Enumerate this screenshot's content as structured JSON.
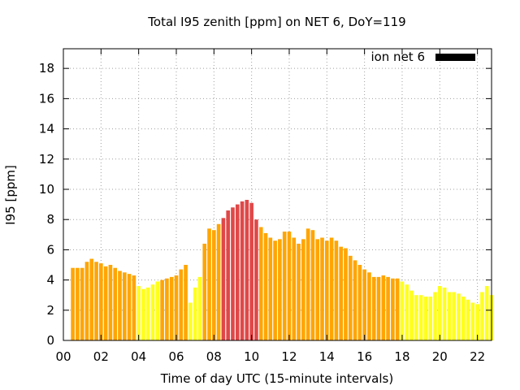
{
  "chart_data": {
    "type": "bar",
    "title": "Total I95 zenith [ppm] on NET 6, DoY=119",
    "xlabel": "Time of day UTC (15-minute intervals)",
    "ylabel": "I95 [ppm]",
    "xlim": [
      0,
      22.75
    ],
    "ylim": [
      0,
      19.3
    ],
    "x_ticks": [
      "00",
      "02",
      "04",
      "06",
      "08",
      "10",
      "12",
      "14",
      "16",
      "18",
      "20",
      "22"
    ],
    "y_ticks": [
      "0",
      "2",
      "4",
      "6",
      "8",
      "10",
      "12",
      "14",
      "16",
      "18"
    ],
    "grid": true,
    "legend": {
      "label": "ion net 6",
      "color": "#000000",
      "position": "top-right"
    },
    "colors": {
      "yellow": "#ffff1e",
      "orange": "#ffa500",
      "red": "#e04848"
    },
    "series": [
      {
        "values": [
          4.8,
          4.8,
          4.8,
          5.2,
          5.4,
          5.2,
          5.1,
          4.9,
          5.0,
          4.8,
          4.6,
          4.5,
          4.4,
          4.3,
          3.6,
          3.4,
          3.5,
          3.7,
          3.9,
          4.0,
          4.1,
          4.2,
          4.3,
          4.7,
          5.0,
          2.5,
          3.5,
          4.2,
          6.4,
          7.4,
          7.3,
          7.7,
          8.1,
          8.6,
          8.8,
          9.0,
          9.2,
          9.3,
          9.1,
          8.0,
          7.5,
          7.1,
          6.8,
          6.6,
          6.7,
          7.2,
          7.2,
          6.8,
          6.4,
          6.7,
          7.4,
          7.3,
          6.7,
          6.8,
          6.6,
          6.8,
          6.6,
          6.2,
          6.1,
          5.6,
          5.3,
          5.0,
          4.7,
          4.5,
          4.2,
          4.2,
          4.3,
          4.2,
          4.1,
          4.1,
          3.9,
          3.7,
          3.3,
          3.0,
          3.0,
          2.9,
          2.9,
          3.2,
          3.6,
          3.5,
          3.2,
          3.2,
          3.1,
          2.9,
          2.7,
          2.5,
          2.4,
          3.2,
          3.6,
          3.0
        ],
        "colors": [
          "orange",
          "orange",
          "orange",
          "orange",
          "orange",
          "orange",
          "orange",
          "orange",
          "orange",
          "orange",
          "orange",
          "orange",
          "orange",
          "orange",
          "yellow",
          "yellow",
          "yellow",
          "yellow",
          "yellow",
          "orange",
          "orange",
          "orange",
          "orange",
          "orange",
          "orange",
          "yellow",
          "yellow",
          "yellow",
          "orange",
          "orange",
          "orange",
          "orange",
          "red",
          "red",
          "red",
          "red",
          "red",
          "red",
          "red",
          "red",
          "orange",
          "orange",
          "orange",
          "orange",
          "orange",
          "orange",
          "orange",
          "orange",
          "orange",
          "orange",
          "orange",
          "orange",
          "orange",
          "orange",
          "orange",
          "orange",
          "orange",
          "orange",
          "orange",
          "orange",
          "orange",
          "orange",
          "orange",
          "orange",
          "orange",
          "orange",
          "orange",
          "orange",
          "orange",
          "orange",
          "yellow",
          "yellow",
          "yellow",
          "yellow",
          "yellow",
          "yellow",
          "yellow",
          "yellow",
          "yellow",
          "yellow",
          "yellow",
          "yellow",
          "yellow",
          "yellow",
          "yellow",
          "yellow",
          "yellow",
          "yellow",
          "yellow",
          "yellow"
        ]
      }
    ]
  }
}
